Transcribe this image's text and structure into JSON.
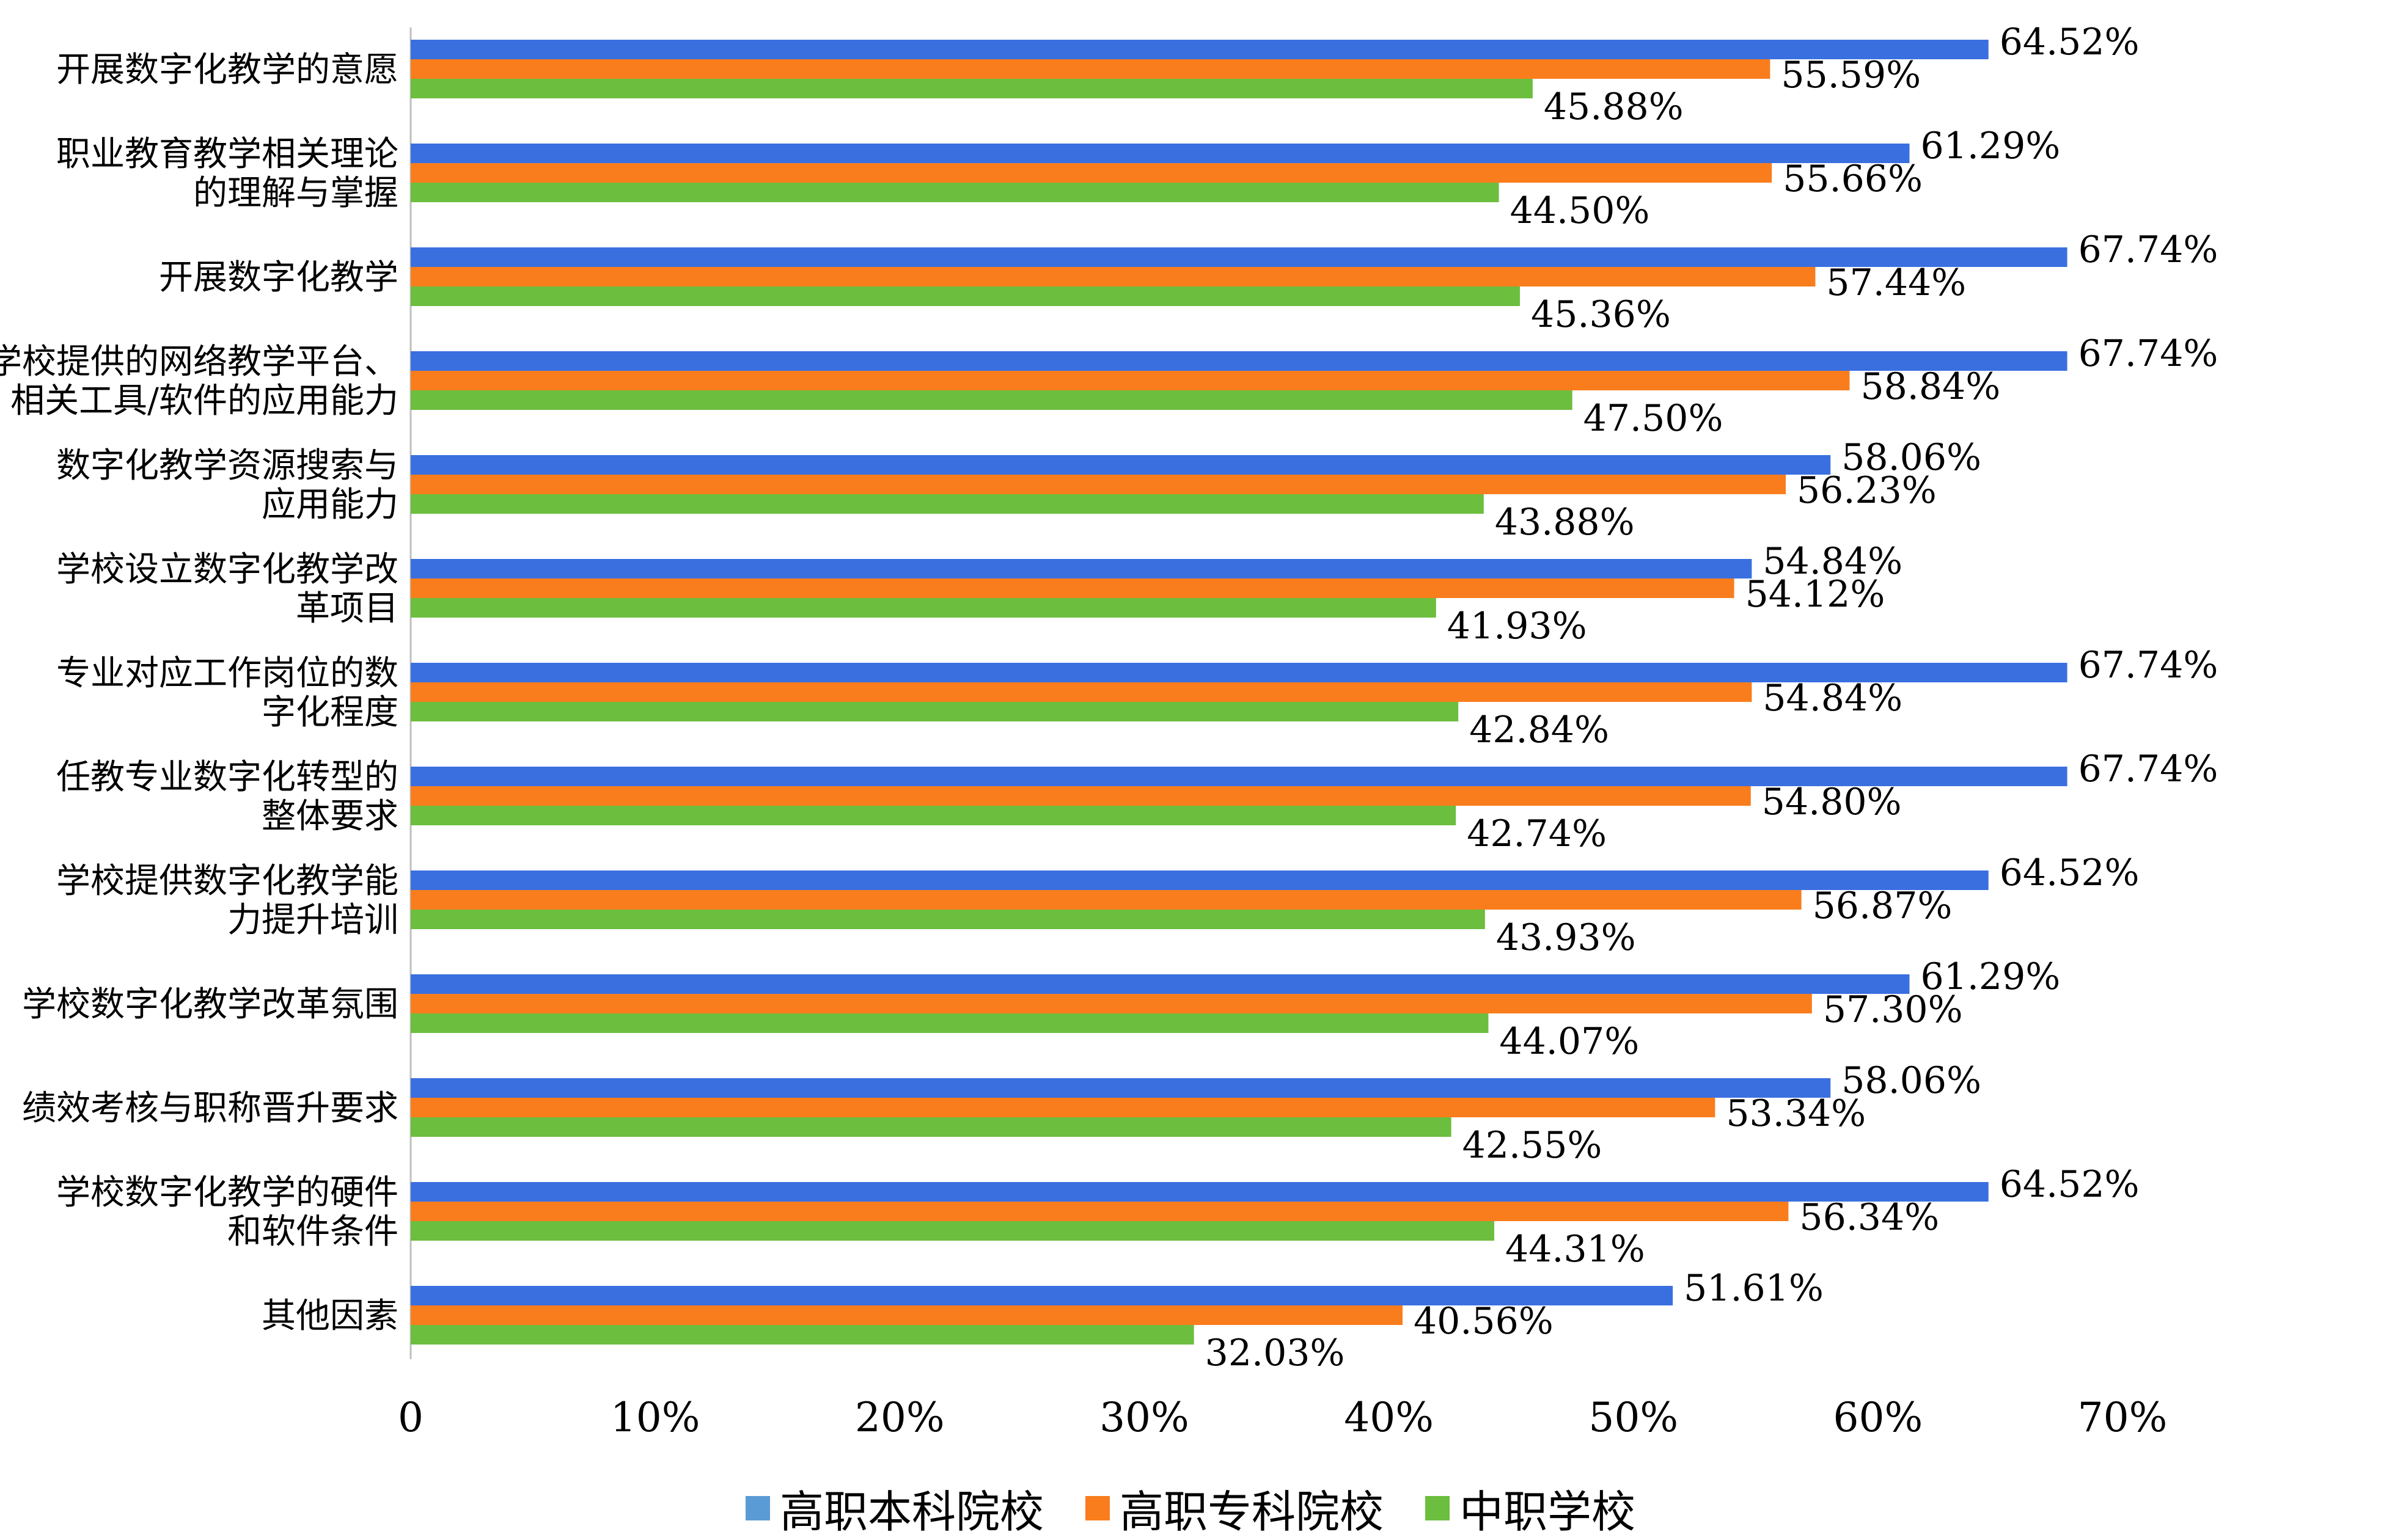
{
  "chart_data": {
    "type": "bar",
    "orientation": "horizontal",
    "categories": [
      [
        "开展数字化教学的意愿"
      ],
      [
        "职业教育教学相关理论",
        "的理解与掌握"
      ],
      [
        "开展数字化教学"
      ],
      [
        "学校提供的网络教学平台、",
        "相关工具/软件的应用能力"
      ],
      [
        "数字化教学资源搜索与",
        "应用能力"
      ],
      [
        "学校设立数字化教学改",
        "革项目"
      ],
      [
        "专业对应工作岗位的数",
        "字化程度"
      ],
      [
        "任教专业数字化转型的",
        "整体要求"
      ],
      [
        "学校提供数字化教学能",
        "力提升培训"
      ],
      [
        "学校数字化教学改革氛围"
      ],
      [
        "绩效考核与职称晋升要求"
      ],
      [
        "学校数字化教学的硬件",
        "和软件条件"
      ],
      [
        "其他因素"
      ]
    ],
    "series": [
      {
        "name": "高职本科院校",
        "color": "#3a6fe0",
        "values": [
          64.52,
          61.29,
          67.74,
          67.74,
          58.06,
          54.84,
          67.74,
          67.74,
          64.52,
          61.29,
          58.06,
          64.52,
          51.61
        ],
        "labels": [
          "64.52%",
          "61.29%",
          "67.74%",
          "67.74%",
          "58.06%",
          "54.84%",
          "67.74%",
          "67.74%",
          "64.52%",
          "61.29%",
          "58.06%",
          "64.52%",
          "51.61%"
        ]
      },
      {
        "name": "高职专科院校",
        "color": "#f97d1c",
        "values": [
          55.59,
          55.66,
          57.44,
          58.84,
          56.23,
          54.12,
          54.84,
          54.8,
          56.87,
          57.3,
          53.34,
          56.34,
          40.56
        ],
        "labels": [
          "55.59%",
          "55.66%",
          "57.44%",
          "58.84%",
          "56.23%",
          "54.12%",
          "54.84%",
          "54.80%",
          "56.87%",
          "57.30%",
          "53.34%",
          "56.34%",
          "40.56%"
        ]
      },
      {
        "name": "中职学校",
        "color": "#6cbe3e",
        "values": [
          45.88,
          44.5,
          45.36,
          47.5,
          43.88,
          41.93,
          42.84,
          42.74,
          43.93,
          44.07,
          42.55,
          44.31,
          32.03
        ],
        "labels": [
          "45.88%",
          "44.50%",
          "45.36%",
          "47.50%",
          "43.88%",
          "41.93%",
          "42.84%",
          "42.74%",
          "43.93%",
          "44.07%",
          "42.55%",
          "44.31%",
          "32.03%"
        ]
      }
    ],
    "xlim": [
      0,
      70
    ],
    "xticks": [
      0,
      10,
      20,
      30,
      40,
      50,
      60,
      70
    ],
    "xtick_labels": [
      "0",
      "10%",
      "20%",
      "30%",
      "40%",
      "50%",
      "60%",
      "70%"
    ],
    "grid": false,
    "legend_position": "bottom",
    "legend_swatch_color": "#5b9bd5"
  }
}
